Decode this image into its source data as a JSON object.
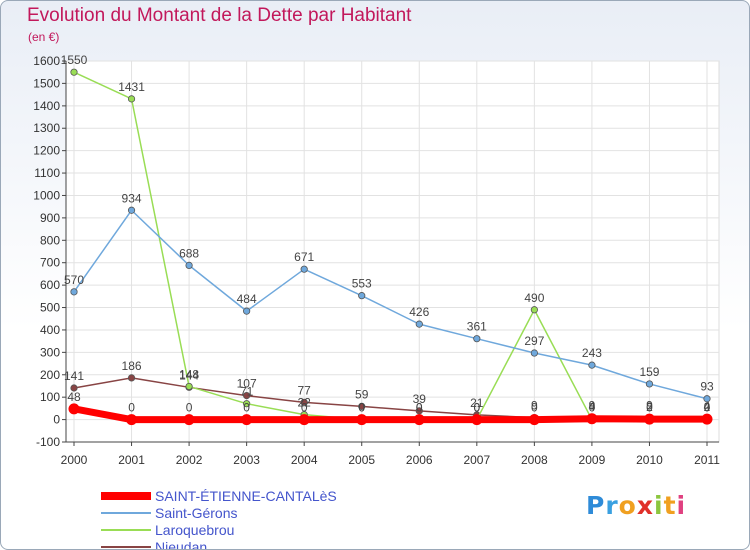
{
  "title": "Evolution du Montant de la Dette par Habitant",
  "unit": "(en €)",
  "logo": "Proxiti",
  "chart_data": {
    "type": "line",
    "x": [
      "2000",
      "2001",
      "2002",
      "2003",
      "2004",
      "2005",
      "2006",
      "2007",
      "2008",
      "2009",
      "2010",
      "2011"
    ],
    "ylim": [
      -100,
      1600
    ],
    "yticks": [
      -100,
      0,
      100,
      200,
      300,
      400,
      500,
      600,
      700,
      800,
      900,
      1000,
      1100,
      1200,
      1300,
      1400,
      1500,
      1600
    ],
    "grid": true,
    "legend_position": "bottom-left",
    "series": [
      {
        "name": "SAINT-ÉTIENNE-CANTALèS",
        "color": "#ff0000",
        "width": 7,
        "values": [
          48,
          0,
          0,
          0,
          0,
          0,
          0,
          0,
          0,
          4,
          2,
          2
        ],
        "labels": [
          "48",
          "0",
          "0",
          "0",
          "0",
          "0",
          "0",
          "0",
          "0",
          "4",
          "2",
          "2"
        ]
      },
      {
        "name": "Saint-Gérons",
        "color": "#6fa8dc",
        "width": 1.5,
        "values": [
          570,
          934,
          688,
          484,
          671,
          553,
          426,
          361,
          297,
          243,
          159,
          93
        ],
        "labels": [
          "570",
          "934",
          "688",
          "484",
          "671",
          "553",
          "426",
          "361",
          "297",
          "243",
          "159",
          "93"
        ]
      },
      {
        "name": "Laroquebrou",
        "color": "#99dd55",
        "width": 1.5,
        "values": [
          1550,
          1431,
          148,
          71,
          22,
          0,
          0,
          0,
          490,
          0,
          0,
          0
        ],
        "labels": [
          "1550",
          "1431",
          "148",
          "71",
          "22",
          "0",
          "0",
          "0",
          "490",
          "0",
          "0",
          "0"
        ]
      },
      {
        "name": "Nieudan",
        "color": "#884444",
        "width": 1.5,
        "values": [
          141,
          186,
          144,
          107,
          77,
          59,
          39,
          21,
          9,
          9,
          9,
          4
        ],
        "labels": [
          "141",
          "186",
          "144",
          "107",
          "77",
          "59",
          "39",
          "21",
          "9",
          "9",
          "9",
          "4"
        ]
      }
    ]
  }
}
